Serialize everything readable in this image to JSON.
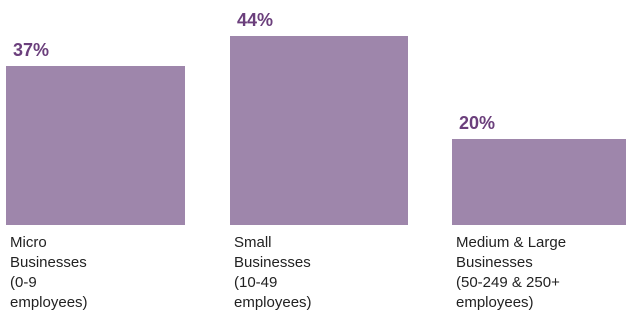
{
  "chart_data": {
    "type": "bar",
    "categories": [
      [
        "Micro",
        "Businesses",
        "(0-9",
        "employees)"
      ],
      [
        "Small",
        "Businesses",
        "(10-49",
        "employees)"
      ],
      [
        "Medium & Large",
        "Businesses",
        "(50-249 & 250+",
        "employees)"
      ]
    ],
    "values": [
      37,
      44,
      20
    ],
    "value_labels": [
      "37%",
      "44%",
      "20%"
    ],
    "title": "",
    "xlabel": "",
    "ylabel": "",
    "ylim": [
      0,
      44
    ],
    "grid": false,
    "legend": "none",
    "bar_color": "#9e86ab",
    "label_color": "#6b3f7c"
  }
}
